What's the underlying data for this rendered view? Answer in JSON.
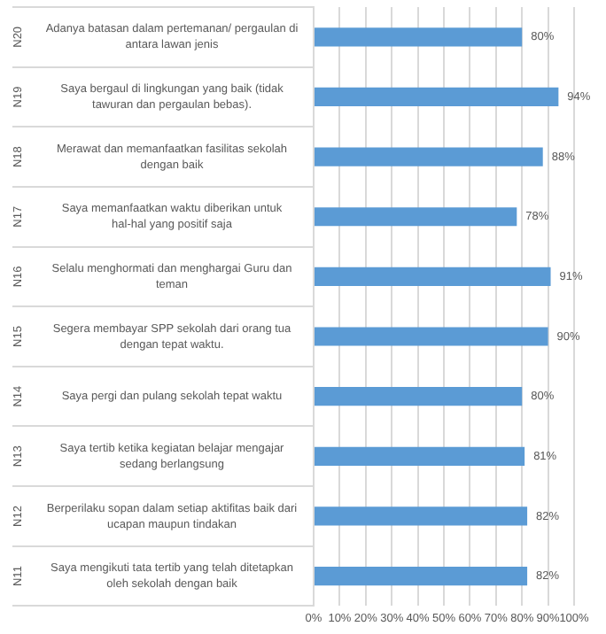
{
  "chart_data": {
    "type": "bar",
    "orientation": "horizontal",
    "categories": [
      "Adanya batasan dalam pertemanan/ pergaulan di antara lawan jenis",
      "Saya bergaul di lingkungan yang baik (tidak tawuran dan pergaulan bebas).",
      "Merawat dan memanfaatkan fasilitas sekolah dengan baik",
      "Saya memanfaatkan waktu diberikan untuk hal-hal yang positif saja",
      "Selalu menghormati dan menghargai Guru dan teman",
      "Segera membayar SPP sekolah dari orang tua dengan tepat waktu.",
      "Saya pergi dan pulang sekolah tepat waktu",
      "Saya tertib ketika kegiatan belajar mengajar sedang berlangsung",
      "Berperilaku sopan dalam setiap aktifitas baik dari ucapan maupun tindakan",
      "Saya mengikuti tata tertib yang telah ditetapkan oleh sekolah dengan baik"
    ],
    "values": [
      80,
      94,
      88,
      78,
      91,
      90,
      80,
      81,
      82,
      82
    ],
    "value_labels": [
      "80%",
      "94%",
      "88%",
      "78%",
      "91%",
      "90%",
      "80%",
      "81%",
      "82%",
      "82%"
    ],
    "color": "#5b9bd5",
    "xlim": [
      0,
      100
    ],
    "xticks": [
      {
        "value": 0,
        "label": "0%"
      },
      {
        "value": 10,
        "label": "10%"
      },
      {
        "value": 20,
        "label": "20%"
      },
      {
        "value": 30,
        "label": "30%"
      },
      {
        "value": 40,
        "label": "40%"
      },
      {
        "value": 50,
        "label": "50%"
      },
      {
        "value": 60,
        "label": "60%"
      },
      {
        "value": 70,
        "label": "70%"
      },
      {
        "value": 80,
        "label": "80%"
      },
      {
        "value": 90,
        "label": "90%"
      },
      {
        "value": 100,
        "label": "100%"
      }
    ],
    "grid": "x",
    "annotations": [
      "N20",
      "N19",
      "N18",
      "N17",
      "N16",
      "N15",
      "N14",
      "N13",
      "N12",
      "N11"
    ]
  }
}
